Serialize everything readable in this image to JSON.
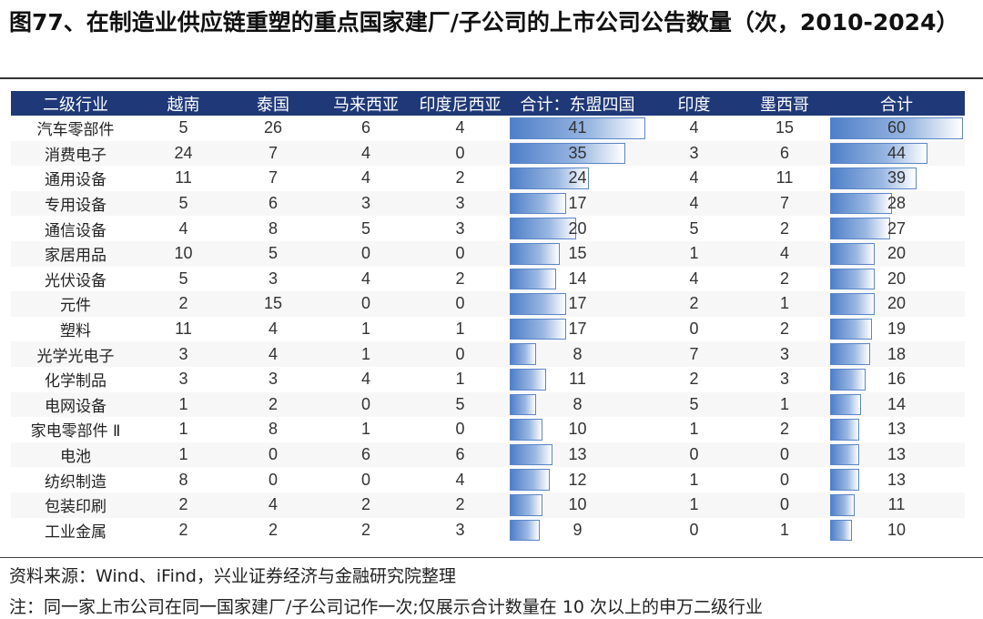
{
  "title": "图77、在制造业供应链重塑的重点国家建厂/子公司的上市公司公告数量（次，2010-2024）",
  "table": {
    "headers": [
      "二级行业",
      "越南",
      "泰国",
      "马来西亚",
      "印度尼西亚",
      "合计：东盟四国",
      "印度",
      "墨西哥",
      "合计"
    ],
    "bar_max": {
      "asean_total": 41,
      "total": 60
    },
    "rows": [
      {
        "industry": "汽车零部件",
        "vn": "5",
        "th": "26",
        "my": "6",
        "id": "4",
        "asean": "41",
        "in": "4",
        "mx": "15",
        "total": "60"
      },
      {
        "industry": "消费电子",
        "vn": "24",
        "th": "7",
        "my": "4",
        "id": "0",
        "asean": "35",
        "in": "3",
        "mx": "6",
        "total": "44"
      },
      {
        "industry": "通用设备",
        "vn": "11",
        "th": "7",
        "my": "4",
        "id": "2",
        "asean": "24",
        "in": "4",
        "mx": "11",
        "total": "39"
      },
      {
        "industry": "专用设备",
        "vn": "5",
        "th": "6",
        "my": "3",
        "id": "3",
        "asean": "17",
        "in": "4",
        "mx": "7",
        "total": "28"
      },
      {
        "industry": "通信设备",
        "vn": "4",
        "th": "8",
        "my": "5",
        "id": "3",
        "asean": "20",
        "in": "5",
        "mx": "2",
        "total": "27"
      },
      {
        "industry": "家居用品",
        "vn": "10",
        "th": "5",
        "my": "0",
        "id": "0",
        "asean": "15",
        "in": "1",
        "mx": "4",
        "total": "20"
      },
      {
        "industry": "光伏设备",
        "vn": "5",
        "th": "3",
        "my": "4",
        "id": "2",
        "asean": "14",
        "in": "4",
        "mx": "2",
        "total": "20"
      },
      {
        "industry": "元件",
        "vn": "2",
        "th": "15",
        "my": "0",
        "id": "0",
        "asean": "17",
        "in": "2",
        "mx": "1",
        "total": "20"
      },
      {
        "industry": "塑料",
        "vn": "11",
        "th": "4",
        "my": "1",
        "id": "1",
        "asean": "17",
        "in": "0",
        "mx": "2",
        "total": "19"
      },
      {
        "industry": "光学光电子",
        "vn": "3",
        "th": "4",
        "my": "1",
        "id": "0",
        "asean": "8",
        "in": "7",
        "mx": "3",
        "total": "18"
      },
      {
        "industry": "化学制品",
        "vn": "3",
        "th": "3",
        "my": "4",
        "id": "1",
        "asean": "11",
        "in": "2",
        "mx": "3",
        "total": "16"
      },
      {
        "industry": "电网设备",
        "vn": "1",
        "th": "2",
        "my": "0",
        "id": "5",
        "asean": "8",
        "in": "5",
        "mx": "1",
        "total": "14"
      },
      {
        "industry": "家电零部件 Ⅱ",
        "vn": "1",
        "th": "8",
        "my": "1",
        "id": "0",
        "asean": "10",
        "in": "1",
        "mx": "2",
        "total": "13"
      },
      {
        "industry": "电池",
        "vn": "1",
        "th": "0",
        "my": "6",
        "id": "6",
        "asean": "13",
        "in": "0",
        "mx": "0",
        "total": "13"
      },
      {
        "industry": "纺织制造",
        "vn": "8",
        "th": "0",
        "my": "0",
        "id": "4",
        "asean": "12",
        "in": "1",
        "mx": "0",
        "total": "13"
      },
      {
        "industry": "包装印刷",
        "vn": "2",
        "th": "4",
        "my": "2",
        "id": "2",
        "asean": "10",
        "in": "1",
        "mx": "0",
        "total": "11"
      },
      {
        "industry": "工业金属",
        "vn": "2",
        "th": "2",
        "my": "2",
        "id": "3",
        "asean": "9",
        "in": "0",
        "mx": "1",
        "total": "10"
      }
    ]
  },
  "source": "资料来源：Wind、iFind，兴业证券经济与金融研究院整理",
  "footnote": "注：同一家上市公司在同一国家建厂/子公司记作一次;仅展示合计数量在  10  次以上的申万二级行业"
}
